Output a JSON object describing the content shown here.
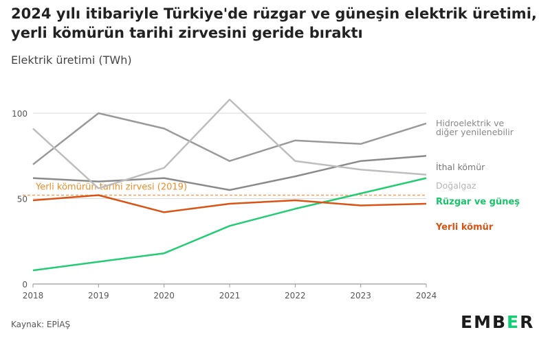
{
  "header": {
    "title": "2024 yılı itibariyle Türkiye'de rüzgar ve güneşin elektrik üretimi, yerli kömürün tarihi zirvesini geride bıraktı",
    "subtitle": "Elektrik üretimi (TWh)"
  },
  "footer": {
    "source": "Kaynak: EPİAŞ",
    "logo_left": "EMB",
    "logo_accent": "E",
    "logo_right": "R"
  },
  "chart_data": {
    "type": "line",
    "title": "2024 yılı itibariyle Türkiye'de rüzgar ve güneşin elektrik üretimi, yerli kömürün tarihi zirvesini geride bıraktı",
    "ylabel": "Elektrik üretimi (TWh)",
    "xlabel": "",
    "x": [
      2018,
      2019,
      2020,
      2021,
      2022,
      2023,
      2024
    ],
    "ylim": [
      0,
      108
    ],
    "yticks": [
      0,
      50,
      100
    ],
    "grid": true,
    "legend": "direct labels at right",
    "series": [
      {
        "name": "Hidroelektrik ve diğer yenilenebilir",
        "color": "#999999",
        "width": 2.5,
        "values": [
          70,
          100,
          91,
          72,
          84,
          82,
          94
        ]
      },
      {
        "name": "İthal kömür",
        "color": "#8a8a8a",
        "width": 2.5,
        "values": [
          62,
          60,
          62,
          55,
          63,
          72,
          75
        ]
      },
      {
        "name": "Doğalgaz",
        "color": "#bdbdbd",
        "width": 2.5,
        "values": [
          91,
          56,
          68,
          108,
          72,
          67,
          64
        ]
      },
      {
        "name": "Rüzgar ve güneş",
        "color": "#22cc72",
        "width": 2.5,
        "values": [
          8,
          13,
          18,
          34,
          44,
          53,
          62
        ]
      },
      {
        "name": "Yerli kömür",
        "color": "#d95314",
        "width": 2.5,
        "values": [
          49,
          52,
          42,
          47,
          49,
          46,
          47
        ]
      }
    ],
    "annotations": [
      {
        "text": "Yerli kömürün tarihi zirvesi (2019)",
        "value": 52,
        "color": "#f4a05a",
        "style": "dashed"
      }
    ]
  }
}
